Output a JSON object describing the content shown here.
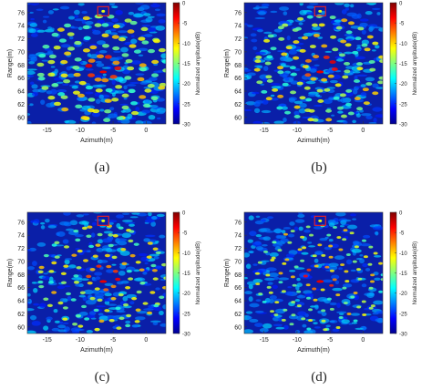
{
  "chart_data": [
    {
      "type": "image",
      "label": "(a)",
      "xlabel": "Azimuth(m)",
      "ylabel": "Range(m)",
      "colorbar_label": "Normalized amplitude(dB)",
      "colormap": "jet",
      "xlim": [
        -18,
        3
      ],
      "xticks": [
        -15,
        -10,
        -5,
        0
      ],
      "ylim": [
        59,
        77.5
      ],
      "yticks": [
        60,
        62,
        64,
        66,
        68,
        70,
        72,
        74,
        76
      ],
      "clim": [
        -30,
        0
      ],
      "cticks": [
        0,
        -5,
        -10,
        -15,
        -20,
        -25,
        -30
      ]
    },
    {
      "type": "image",
      "label": "(b)",
      "xlabel": "Azimuth(m)",
      "ylabel": "Range(m)",
      "colorbar_label": "Normalized amplitude(dB)",
      "colormap": "jet",
      "xlim": [
        -18,
        3
      ],
      "xticks": [
        -15,
        -10,
        -5,
        0
      ],
      "ylim": [
        59,
        77.5
      ],
      "yticks": [
        60,
        62,
        64,
        66,
        68,
        70,
        72,
        74,
        76
      ],
      "clim": [
        -30,
        0
      ],
      "cticks": [
        0,
        -5,
        -10,
        -15,
        -20,
        -25,
        -30
      ]
    },
    {
      "type": "image",
      "label": "(c)",
      "xlabel": "Azimuth(m)",
      "ylabel": "Range(m)",
      "colorbar_label": "Normalized amplitude(dB)",
      "colormap": "jet",
      "xlim": [
        -18,
        3
      ],
      "xticks": [
        -15,
        -10,
        -5,
        0
      ],
      "ylim": [
        59,
        77.5
      ],
      "yticks": [
        60,
        62,
        64,
        66,
        68,
        70,
        72,
        74,
        76
      ],
      "clim": [
        -30,
        0
      ],
      "cticks": [
        0,
        -5,
        -10,
        -15,
        -20,
        -25,
        -30
      ]
    },
    {
      "type": "image",
      "label": "(d)",
      "xlabel": "Azimuth(m)",
      "ylabel": "Range(m)",
      "colorbar_label": "Normalized amplitude(dB)",
      "colormap": "jet",
      "xlim": [
        -18,
        3
      ],
      "xticks": [
        -15,
        -10,
        -5,
        0
      ],
      "ylim": [
        59,
        77.5
      ],
      "yticks": [
        60,
        62,
        64,
        66,
        68,
        70,
        72,
        74,
        76
      ],
      "clim": [
        -30,
        0
      ],
      "cticks": [
        0,
        -5,
        -10,
        -15,
        -20,
        -25,
        -30
      ]
    }
  ]
}
